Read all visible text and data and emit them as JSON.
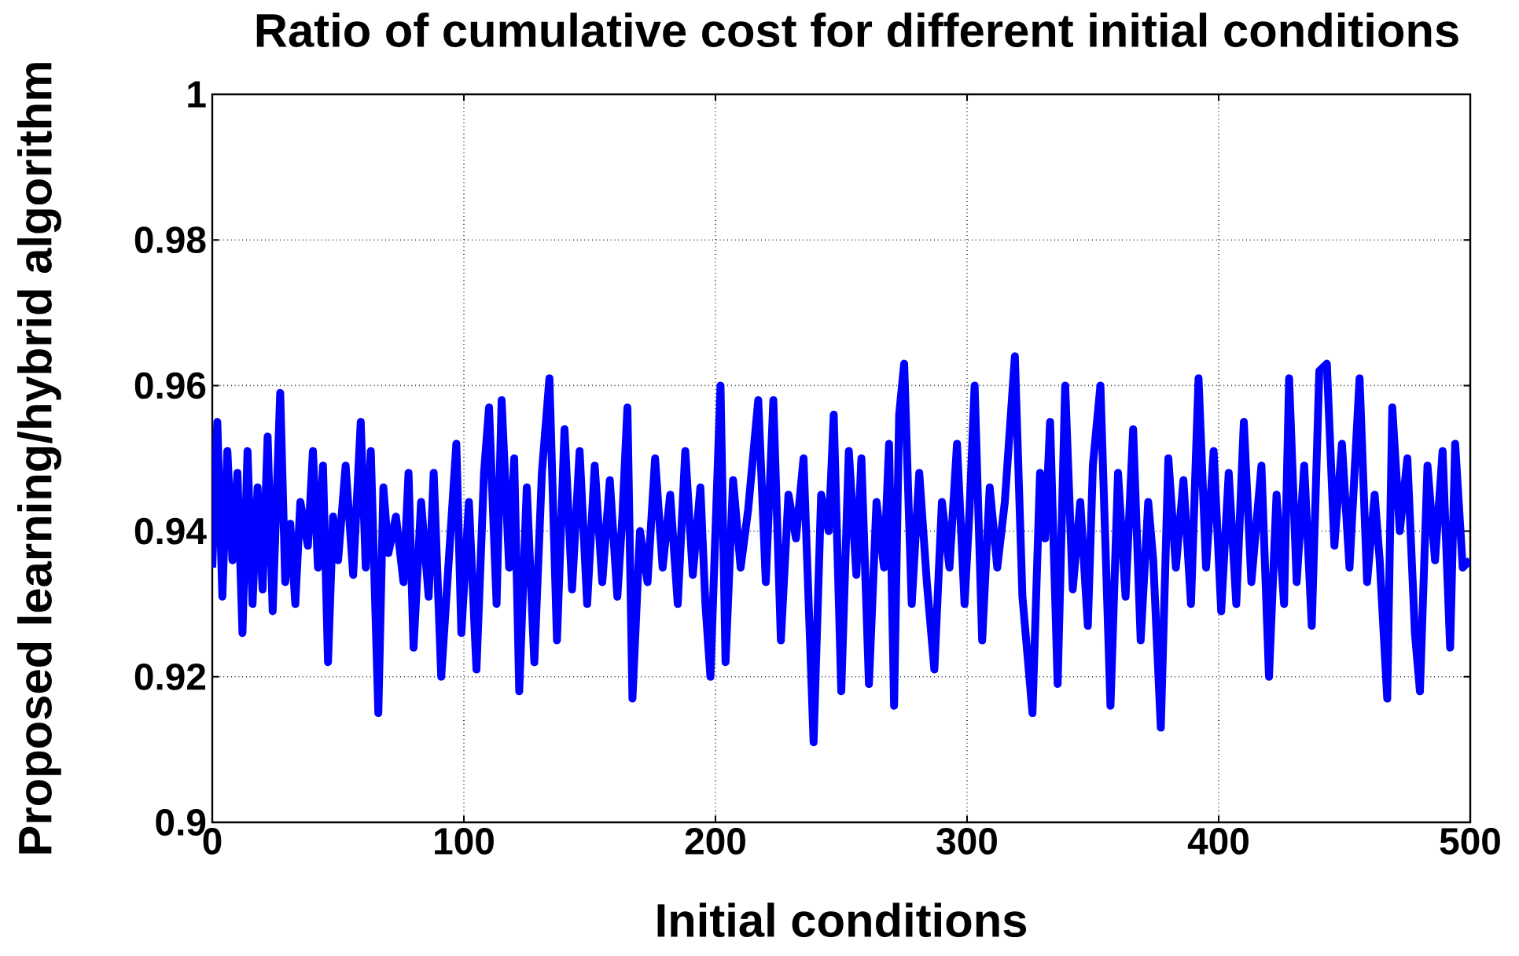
{
  "chart_data": {
    "type": "line",
    "title": "Ratio of cumulative cost for different initial conditions",
    "xlabel": "Initial conditions",
    "ylabel": "Proposed learning/hybrid algorithm",
    "xlim": [
      0,
      500
    ],
    "ylim": [
      0.9,
      1
    ],
    "xticks": [
      0,
      100,
      200,
      300,
      400,
      500
    ],
    "yticks": [
      0.9,
      0.92,
      0.94,
      0.96,
      0.98,
      1
    ],
    "grid": true,
    "marker": "none",
    "line_style": "solid",
    "series": [
      {
        "color": "#0000ff",
        "x": [
          0,
          2,
          4,
          6,
          8,
          10,
          12,
          14,
          16,
          18,
          20,
          22,
          24,
          27,
          29,
          31,
          33,
          35,
          38,
          40,
          42,
          44,
          46,
          48,
          50,
          53,
          56,
          59,
          61,
          63,
          66,
          68,
          70,
          73,
          76,
          78,
          80,
          83,
          86,
          88,
          91,
          94,
          97,
          99,
          102,
          105,
          108,
          110,
          113,
          115,
          118,
          120,
          122,
          125,
          128,
          131,
          134,
          137,
          140,
          143,
          146,
          149,
          152,
          155,
          158,
          161,
          163,
          165,
          167,
          170,
          173,
          176,
          179,
          182,
          185,
          188,
          191,
          194,
          196,
          198,
          202,
          204,
          207,
          210,
          213,
          217,
          220,
          223,
          226,
          229,
          232,
          235,
          239,
          242,
          245,
          247,
          250,
          253,
          256,
          258,
          261,
          264,
          267,
          269,
          271,
          273,
          275,
          278,
          281,
          284,
          287,
          290,
          293,
          296,
          299,
          301,
          303,
          306,
          309,
          312,
          315,
          319,
          322,
          326,
          329,
          331,
          333,
          336,
          339,
          342,
          345,
          348,
          350,
          353,
          357,
          360,
          363,
          366,
          369,
          372,
          374,
          377,
          380,
          383,
          386,
          389,
          392,
          395,
          398,
          401,
          404,
          407,
          410,
          413,
          417,
          420,
          423,
          426,
          428,
          431,
          434,
          437,
          440,
          443,
          446,
          449,
          452,
          456,
          459,
          462,
          464,
          467,
          469,
          472,
          475,
          478,
          480,
          483,
          486,
          489,
          492,
          494,
          497,
          500
        ],
        "values": [
          0.935,
          0.955,
          0.931,
          0.951,
          0.936,
          0.948,
          0.926,
          0.951,
          0.93,
          0.946,
          0.932,
          0.953,
          0.929,
          0.959,
          0.933,
          0.941,
          0.93,
          0.944,
          0.938,
          0.951,
          0.935,
          0.949,
          0.922,
          0.942,
          0.936,
          0.949,
          0.934,
          0.955,
          0.935,
          0.951,
          0.915,
          0.946,
          0.937,
          0.942,
          0.933,
          0.948,
          0.924,
          0.944,
          0.931,
          0.948,
          0.92,
          0.936,
          0.952,
          0.926,
          0.944,
          0.921,
          0.948,
          0.957,
          0.93,
          0.958,
          0.935,
          0.95,
          0.918,
          0.946,
          0.922,
          0.948,
          0.961,
          0.925,
          0.954,
          0.932,
          0.951,
          0.93,
          0.949,
          0.933,
          0.947,
          0.931,
          0.942,
          0.957,
          0.917,
          0.94,
          0.933,
          0.95,
          0.935,
          0.945,
          0.93,
          0.951,
          0.934,
          0.946,
          0.93,
          0.92,
          0.96,
          0.922,
          0.947,
          0.935,
          0.943,
          0.958,
          0.933,
          0.958,
          0.925,
          0.945,
          0.939,
          0.95,
          0.911,
          0.945,
          0.94,
          0.956,
          0.918,
          0.951,
          0.934,
          0.95,
          0.919,
          0.944,
          0.935,
          0.952,
          0.916,
          0.956,
          0.963,
          0.93,
          0.948,
          0.933,
          0.921,
          0.944,
          0.935,
          0.952,
          0.93,
          0.943,
          0.96,
          0.925,
          0.946,
          0.935,
          0.944,
          0.964,
          0.931,
          0.915,
          0.948,
          0.939,
          0.955,
          0.919,
          0.96,
          0.932,
          0.944,
          0.927,
          0.949,
          0.96,
          0.916,
          0.948,
          0.931,
          0.954,
          0.925,
          0.944,
          0.936,
          0.913,
          0.95,
          0.935,
          0.947,
          0.93,
          0.961,
          0.935,
          0.951,
          0.929,
          0.948,
          0.93,
          0.955,
          0.933,
          0.949,
          0.92,
          0.945,
          0.93,
          0.961,
          0.933,
          0.949,
          0.927,
          0.962,
          0.963,
          0.938,
          0.952,
          0.935,
          0.961,
          0.933,
          0.945,
          0.936,
          0.917,
          0.957,
          0.94,
          0.95,
          0.926,
          0.918,
          0.949,
          0.936,
          0.951,
          0.924,
          0.952,
          0.935,
          0.936
        ]
      }
    ]
  }
}
